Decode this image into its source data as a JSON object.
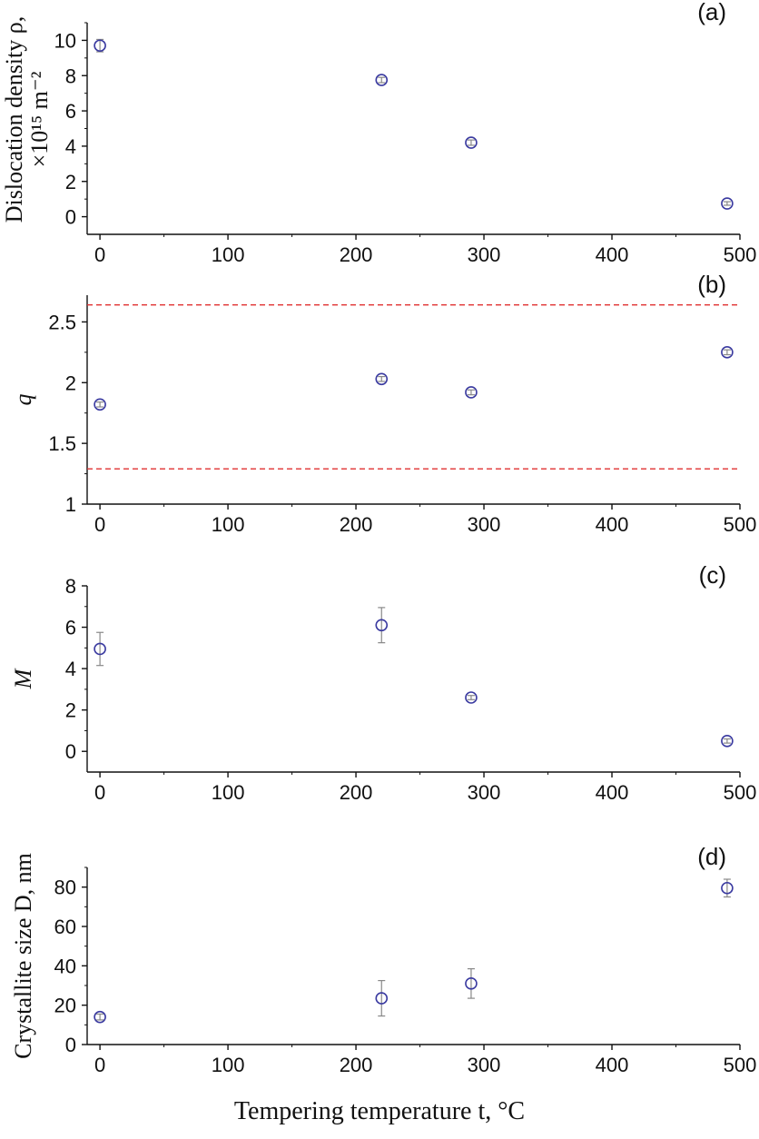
{
  "chart_data": [
    {
      "type": "scatter",
      "panel": "(a)",
      "ylabel_line1": "Dislocation density ρ,",
      "ylabel_line2": "×10¹⁵ m⁻²",
      "xlim": [
        -10,
        500
      ],
      "ylim": [
        -1,
        11
      ],
      "xticks": [
        0,
        100,
        200,
        300,
        400,
        500
      ],
      "yticks": [
        0,
        2,
        4,
        6,
        8,
        10
      ],
      "points": [
        {
          "x": 0,
          "y": 9.7,
          "err": 0.35
        },
        {
          "x": 220,
          "y": 7.75,
          "err": 0.15
        },
        {
          "x": 290,
          "y": 4.2,
          "err": 0.15
        },
        {
          "x": 490,
          "y": 0.75,
          "err": 0.1
        }
      ]
    },
    {
      "type": "scatter",
      "panel": "(b)",
      "ylabel": "q",
      "xlim": [
        -10,
        500
      ],
      "ylim": [
        1,
        2.72
      ],
      "xticks": [
        0,
        100,
        200,
        300,
        400,
        500
      ],
      "yticks": [
        1,
        1.5,
        2,
        2.5
      ],
      "ytick_labels": [
        "1",
        "1.5",
        "2",
        "2.5"
      ],
      "reference_lines": [
        2.64,
        1.29
      ],
      "reference_color": "#e03030",
      "points": [
        {
          "x": 0,
          "y": 1.82,
          "err": 0.02
        },
        {
          "x": 220,
          "y": 2.03,
          "err": 0.02
        },
        {
          "x": 290,
          "y": 1.92,
          "err": 0.02
        },
        {
          "x": 490,
          "y": 2.25,
          "err": 0.02
        }
      ]
    },
    {
      "type": "scatter",
      "panel": "(c)",
      "ylabel": "M",
      "xlim": [
        -10,
        500
      ],
      "ylim": [
        -1,
        8
      ],
      "xticks": [
        0,
        100,
        200,
        300,
        400,
        500
      ],
      "yticks": [
        0,
        2,
        4,
        6,
        8
      ],
      "points": [
        {
          "x": 0,
          "y": 4.95,
          "err": 0.8
        },
        {
          "x": 220,
          "y": 6.1,
          "err": 0.85
        },
        {
          "x": 290,
          "y": 2.6,
          "err": 0.1
        },
        {
          "x": 490,
          "y": 0.5,
          "err": 0.1
        }
      ]
    },
    {
      "type": "scatter",
      "panel": "(d)",
      "ylabel": "Crystallite size D, nm",
      "xlim": [
        -10,
        500
      ],
      "ylim": [
        0,
        90
      ],
      "xticks": [
        0,
        100,
        200,
        300,
        400,
        500
      ],
      "yticks": [
        0,
        20,
        40,
        60,
        80
      ],
      "points": [
        {
          "x": 0,
          "y": 14,
          "err": 1.5
        },
        {
          "x": 220,
          "y": 23.5,
          "err": 9
        },
        {
          "x": 290,
          "y": 31,
          "err": 7.5
        },
        {
          "x": 490,
          "y": 79.5,
          "err": 4.5
        }
      ]
    }
  ],
  "xlabel": "Tempering temperature t, °C",
  "colors": {
    "marker": "#3a3aa0",
    "errorbar": "#888888",
    "axis": "#111111"
  }
}
